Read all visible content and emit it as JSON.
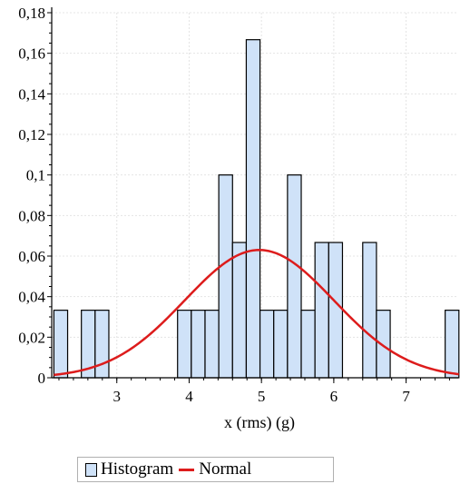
{
  "chart_data": {
    "type": "bar",
    "xlabel": "x (rms) (g)",
    "ylabel": "",
    "xlim": [
      2.1,
      7.72
    ],
    "ylim": [
      0,
      0.18
    ],
    "x_ticks": [
      3,
      4,
      5,
      6,
      7
    ],
    "y_ticks": [
      0,
      0.02,
      0.04,
      0.06,
      0.08,
      0.1,
      0.12,
      0.14,
      0.16,
      0.18
    ],
    "y_tick_labels": [
      "0",
      "0,02",
      "0,04",
      "0,06",
      "0,08",
      "0,1",
      "0,12",
      "0,14",
      "0,16",
      "0,18"
    ],
    "x_tick_labels": [
      "3",
      "4",
      "5",
      "6",
      "7"
    ],
    "grid": true,
    "legend_position": "bottom",
    "series": [
      {
        "name": "Histogram",
        "type": "histogram",
        "color": "#cfe2f8",
        "edge_color": "#000000",
        "bins": [
          {
            "x0": 2.13,
            "x1": 2.32,
            "value": 0.0333
          },
          {
            "x0": 2.51,
            "x1": 2.7,
            "value": 0.0333
          },
          {
            "x0": 2.7,
            "x1": 2.89,
            "value": 0.0333
          },
          {
            "x0": 3.84,
            "x1": 4.03,
            "value": 0.0333
          },
          {
            "x0": 4.03,
            "x1": 4.22,
            "value": 0.0333
          },
          {
            "x0": 4.22,
            "x1": 4.41,
            "value": 0.0333
          },
          {
            "x0": 4.41,
            "x1": 4.6,
            "value": 0.1
          },
          {
            "x0": 4.6,
            "x1": 4.79,
            "value": 0.0667
          },
          {
            "x0": 4.79,
            "x1": 4.98,
            "value": 0.1667
          },
          {
            "x0": 4.98,
            "x1": 5.17,
            "value": 0.0333
          },
          {
            "x0": 5.17,
            "x1": 5.36,
            "value": 0.0333
          },
          {
            "x0": 5.36,
            "x1": 5.55,
            "value": 0.1
          },
          {
            "x0": 5.55,
            "x1": 5.74,
            "value": 0.0333
          },
          {
            "x0": 5.74,
            "x1": 5.93,
            "value": 0.0667
          },
          {
            "x0": 5.93,
            "x1": 6.12,
            "value": 0.0667
          },
          {
            "x0": 6.4,
            "x1": 6.59,
            "value": 0.0667
          },
          {
            "x0": 6.59,
            "x1": 6.78,
            "value": 0.0333
          },
          {
            "x0": 7.54,
            "x1": 7.73,
            "value": 0.0333
          }
        ]
      },
      {
        "name": "Normal",
        "type": "line",
        "color": "#dd1c1c",
        "mean": 4.97,
        "sd": 1.03,
        "peak": 0.063,
        "x_range": [
          2.13,
          7.73
        ]
      }
    ]
  },
  "legend": {
    "histogram_label": "Histogram",
    "normal_label": "Normal"
  }
}
